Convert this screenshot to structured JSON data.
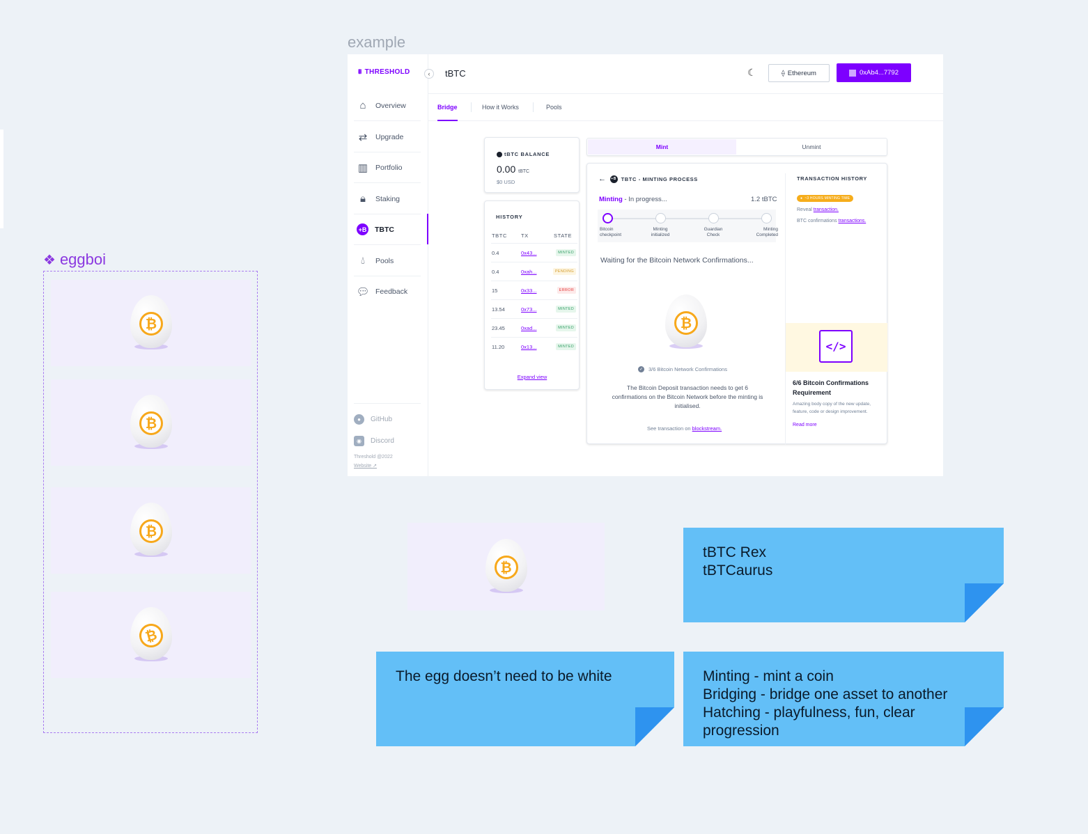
{
  "canvas": {
    "example_label": "example",
    "component_label": "eggboi"
  },
  "app": {
    "logo": "THRESHOLD",
    "page_title": "tBTC",
    "network_button": "Ethereum",
    "wallet_button": "0xAb4...7792",
    "nav": [
      {
        "label": "Overview",
        "icon": "home-icon"
      },
      {
        "label": "Upgrade",
        "icon": "swap-arrows-icon"
      },
      {
        "label": "Portfolio",
        "icon": "bar-chart-icon"
      },
      {
        "label": "Staking",
        "icon": "lock-icon"
      },
      {
        "label": "TBTC",
        "icon": "tbtc-icon",
        "active": true
      },
      {
        "label": "Pools",
        "icon": "droplet-icon"
      },
      {
        "label": "Feedback",
        "icon": "chat-bubble-icon"
      }
    ],
    "footer": {
      "github": "GitHub",
      "discord": "Discord",
      "copyright": "Threshold @2022",
      "website": "Website ↗"
    },
    "tabs": [
      "Bridge",
      "How it Works",
      "Pools"
    ],
    "balance": {
      "title": "tBTC BALANCE",
      "value": "0.00",
      "unit": "tBTC",
      "usd": "$0 USD"
    },
    "history": {
      "title": "HISTORY",
      "columns": [
        "TBTC",
        "TX",
        "STATE"
      ],
      "rows": [
        {
          "amount": "0.4",
          "tx": "0x43...",
          "state": "MINTED",
          "kind": "minted"
        },
        {
          "amount": "0.4",
          "tx": "0xah...",
          "state": "PENDING",
          "kind": "pending"
        },
        {
          "amount": "15",
          "tx": "0x33...",
          "state": "ERROR",
          "kind": "error"
        },
        {
          "amount": "13.54",
          "tx": "0x73...",
          "state": "MINTED",
          "kind": "minted"
        },
        {
          "amount": "23.45",
          "tx": "0xad...",
          "state": "MINTED",
          "kind": "minted"
        },
        {
          "amount": "11.20",
          "tx": "0x13...",
          "state": "MINTED",
          "kind": "minted"
        }
      ],
      "expand": "Expand view"
    },
    "toggle": {
      "mint": "Mint",
      "unmint": "Unmint"
    },
    "minting": {
      "title": "TBTC - MINTING PROCESS",
      "status_strong": "Minting",
      "status_rest": " - In progress...",
      "amount": "1.2 tBTC",
      "steps": [
        {
          "label": "Bitcoin\ncheckpoint"
        },
        {
          "label": "Minting\ninitialized"
        },
        {
          "label": "Guardian\nCheck"
        },
        {
          "label": "Minting\nCompleted"
        }
      ],
      "waiting": "Waiting for the Bitcoin Network Confirmations...",
      "confirmations": "3/6 Bitcoin Network Confirmations",
      "description": "The Bitcoin Deposit transaction needs to get 6 confirmations on the Bitcoin Network before the minting is initialised.",
      "see_prefix": "See transaction on",
      "see_link": "blockstream."
    },
    "tx_history": {
      "title": "TRANSACTION HISTORY",
      "badge": "~3 HOURS MINTING TIME",
      "line1_prefix": "Reveal",
      "line1_link": "transaction.",
      "line2_prefix": "BTC confirmations",
      "line2_link": "transactions.",
      "promo_title": "6/6 Bitcoin Confirmations Requirement",
      "promo_body": "Amazing body copy of the new update, feature, code or design improvement.",
      "promo_link": "Read more"
    }
  },
  "stickies": [
    {
      "text": "tBTC Rex\ntBTCaurus"
    },
    {
      "text": "The egg doesn’t need to be white"
    },
    {
      "text": "Minting - mint a coin\nBridging - bridge one asset to another\nHatching - playfulness, fun, clear progression"
    }
  ],
  "colors": {
    "brand": "#7d00ff",
    "sticky": "#63bff7",
    "bitcoin": "#f7a81b"
  }
}
